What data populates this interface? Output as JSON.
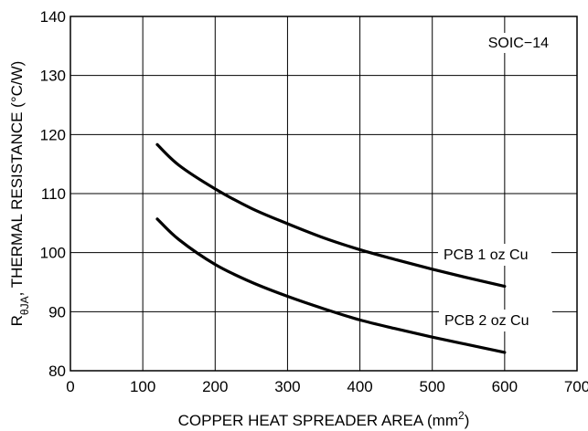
{
  "chart_data": {
    "type": "line",
    "title": "",
    "xlabel": "COPPER HEAT SPREADER AREA (mm",
    "xlabel_superscript": "2",
    "xlabel_suffix": ")",
    "ylabel_main": "R",
    "ylabel_subscript": "θJA",
    "ylabel_rest": ", THERMAL RESISTANCE (°C/W)",
    "xlim": [
      0,
      700
    ],
    "ylim": [
      80,
      140
    ],
    "x_ticks": [
      0,
      100,
      200,
      300,
      400,
      500,
      600,
      700
    ],
    "y_ticks": [
      80,
      90,
      100,
      110,
      120,
      130,
      140
    ],
    "grid": true,
    "annotation": "SOIC−14",
    "series": [
      {
        "name": "PCB 1 oz Cu",
        "x": [
          120,
          150,
          200,
          250,
          300,
          350,
          400,
          450,
          500,
          550,
          600
        ],
        "y": [
          118.3,
          114.8,
          110.8,
          107.5,
          104.9,
          102.5,
          100.5,
          98.8,
          97.2,
          95.7,
          94.3
        ]
      },
      {
        "name": "PCB 2 oz Cu",
        "x": [
          120,
          150,
          200,
          250,
          300,
          350,
          400,
          450,
          500,
          550,
          600
        ],
        "y": [
          105.7,
          102.2,
          98.0,
          95.0,
          92.6,
          90.5,
          88.6,
          87.1,
          85.7,
          84.4,
          83.1
        ]
      }
    ],
    "colors": {
      "line": "#000000",
      "grid": "#000000",
      "background": "#ffffff"
    }
  }
}
